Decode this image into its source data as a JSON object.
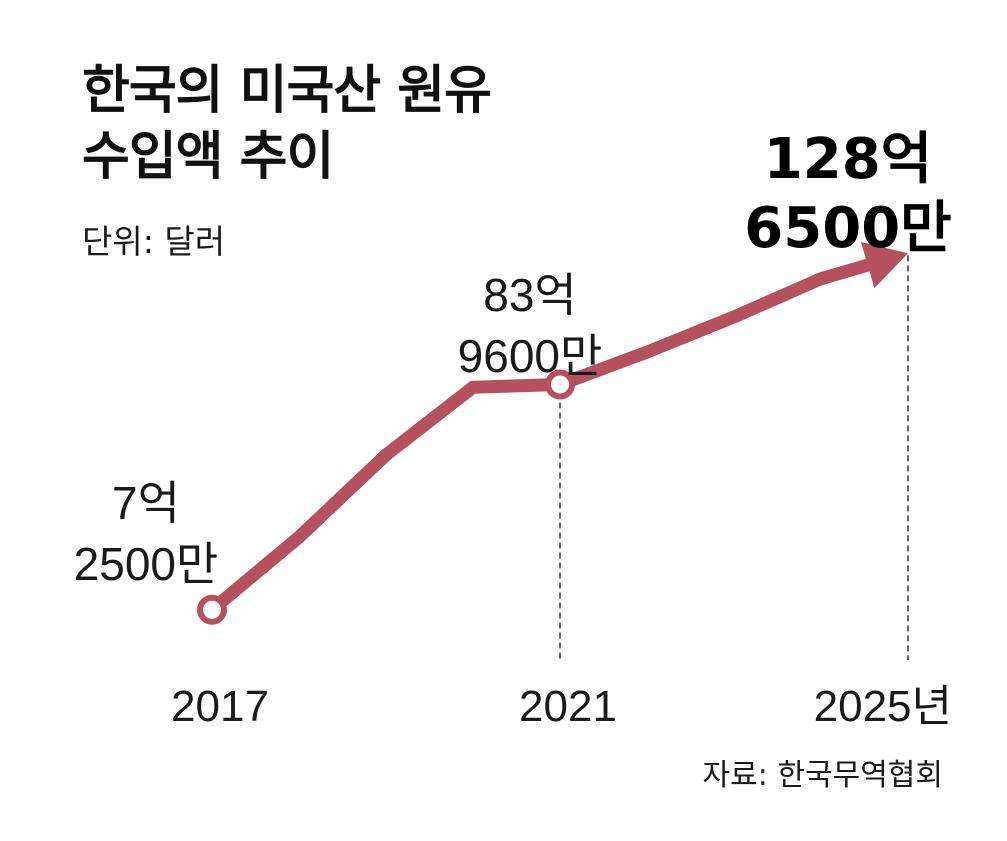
{
  "title_lines": [
    "한국의 미국산 원유",
    "수입액 추이"
  ],
  "unit_label": "단위: 달러",
  "source": "자료: 한국무역협회",
  "colors": {
    "line": "#b5505f",
    "guide": "#333333",
    "marker_fill": "#ffffff"
  },
  "chart_data": {
    "type": "line",
    "title": "한국의 미국산 원유 수입액 추이",
    "ylabel": "단위: 달러",
    "x": [
      2017,
      2018,
      2019,
      2020,
      2021,
      2022,
      2023,
      2024,
      2025
    ],
    "xticks": [
      {
        "x": 2017,
        "label": "2017"
      },
      {
        "x": 2021,
        "label": "2021"
      },
      {
        "x": 2025,
        "label": "2025년"
      }
    ],
    "values": [
      725000000,
      3200000000,
      6000000000,
      8300000000,
      8396000000,
      9500000000,
      10700000000,
      12000000000,
      12865000000
    ],
    "xlim": [
      2017,
      2025
    ],
    "ylim": [
      0,
      14000000000
    ],
    "markers": [
      2017,
      2021
    ],
    "arrow_end": 2025,
    "annotations": [
      {
        "x": 2017,
        "lines": [
          "7억",
          "2500만"
        ],
        "bold": false
      },
      {
        "x": 2021,
        "lines": [
          "83억",
          "9600만"
        ],
        "bold": false
      },
      {
        "x": 2025,
        "lines": [
          "128억",
          "6500만"
        ],
        "bold": true
      }
    ],
    "guides": [
      2021,
      2025
    ],
    "grid": false,
    "legend": "none"
  }
}
